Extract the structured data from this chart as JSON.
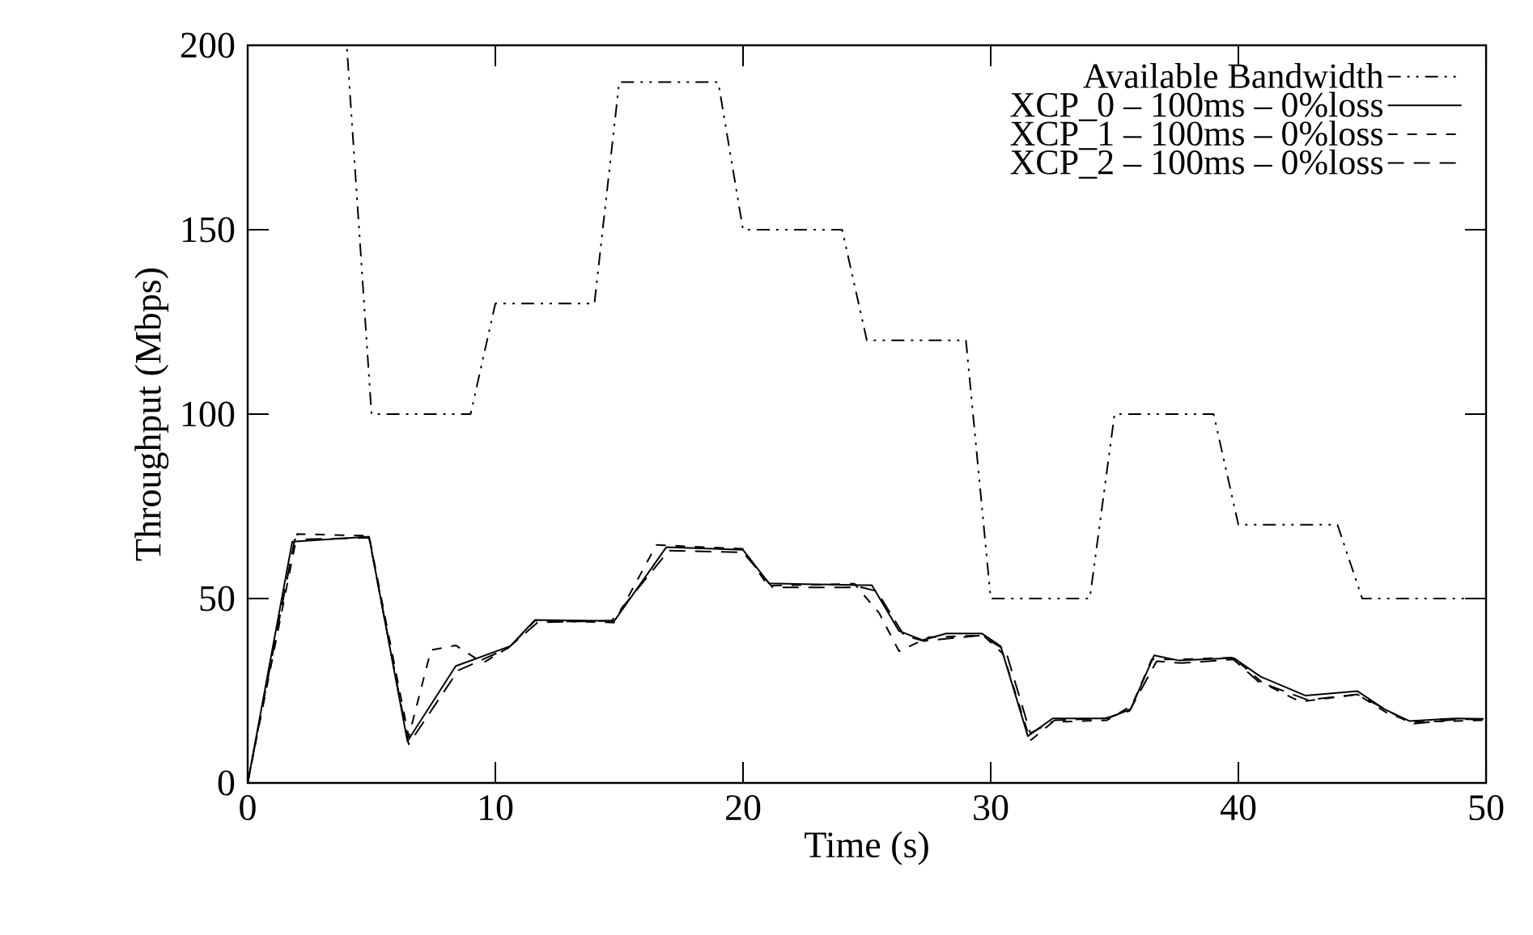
{
  "chart_data": {
    "type": "line",
    "xlabel": "Time (s)",
    "ylabel": "Throughput (Mbps)",
    "xlim": [
      0,
      50
    ],
    "ylim": [
      0,
      200
    ],
    "xticks": [
      0,
      10,
      20,
      30,
      40,
      50
    ],
    "yticks": [
      0,
      50,
      100,
      150,
      200
    ],
    "grid": false,
    "legend": "top right",
    "marker": "none",
    "series": [
      {
        "name": "Available Bandwidth",
        "color": "#000000",
        "line_style": "dashdotdot",
        "x": [
          0,
          4,
          5,
          9,
          10,
          14,
          15,
          19,
          20,
          24,
          25,
          29,
          30,
          34,
          35,
          39,
          40,
          44,
          45,
          50
        ],
        "values": [
          200,
          200,
          100,
          100,
          130,
          130,
          190,
          190,
          150,
          150,
          120,
          120,
          50,
          50,
          100,
          100,
          70,
          70,
          50,
          50
        ]
      },
      {
        "name": "XCP_0 – 100ms – 0%loss",
        "color": "#000000",
        "line_style": "solid",
        "x": [
          0,
          1.8,
          4.9,
          6.45,
          8.4,
          10.6,
          11.6,
          14.8,
          16.9,
          20,
          21.05,
          24.75,
          25.2,
          26.3,
          27.25,
          28.2,
          29.65,
          30.4,
          31.5,
          32.5,
          34.7,
          35.65,
          36.6,
          37.6,
          39.8,
          40.9,
          42.7,
          44.8,
          45.9,
          46.9,
          48.8,
          49.9
        ],
        "values": [
          0,
          65.4,
          66.8,
          11.3,
          31.7,
          37.1,
          44.2,
          43.9,
          63.9,
          63.2,
          54.1,
          53.6,
          53.6,
          41.2,
          38.7,
          40.5,
          40.5,
          37.1,
          12.7,
          17.5,
          17.5,
          20,
          34.6,
          33.2,
          33.9,
          28.8,
          23.7,
          24.9,
          20,
          16.8,
          17.5,
          17.4
        ]
      },
      {
        "name": "XCP_1 – 100ms – 0%loss",
        "color": "#000000",
        "line_style": "dashed",
        "x": [
          0,
          2,
          4.9,
          6.5,
          7.4,
          8.4,
          9.5,
          10.6,
          11.6,
          14.8,
          16.5,
          20,
          21,
          24.5,
          25.5,
          26.3,
          27.5,
          29.7,
          30.5,
          31.6,
          32.5,
          34.7,
          35.7,
          36.5,
          37.6,
          39.8,
          41,
          42.5,
          44.8,
          46,
          47,
          49.9
        ],
        "values": [
          0,
          67.5,
          67,
          12.5,
          36,
          37.3,
          32.5,
          37,
          44,
          43.5,
          64.5,
          63.5,
          53.5,
          54,
          46,
          35.7,
          39.5,
          40,
          35,
          11.5,
          16.5,
          17,
          21,
          33.5,
          33.5,
          34,
          27,
          22,
          24,
          19,
          16.5,
          17
        ]
      },
      {
        "name": "XCP_2 – 100ms – 0%loss",
        "color": "#000000",
        "line_style": "longdashed",
        "x": [
          0,
          1.9,
          4.9,
          6.5,
          8.5,
          10.5,
          11.7,
          14.7,
          17,
          20,
          21.2,
          24.8,
          25.4,
          26.5,
          27.3,
          29.6,
          30.6,
          31.6,
          32.6,
          34.6,
          35.6,
          36.7,
          37.7,
          39.8,
          40.8,
          42.8,
          44.8,
          45.8,
          47,
          48.9,
          49.9
        ],
        "values": [
          0,
          66,
          66.5,
          10.5,
          30.5,
          36.5,
          43.5,
          44,
          63,
          62.5,
          53,
          53,
          52,
          40,
          38.5,
          40,
          36,
          13.5,
          17,
          17.5,
          19.5,
          33,
          32.5,
          33.5,
          27.5,
          22.5,
          24,
          20.5,
          16,
          17.3,
          17.2
        ]
      }
    ]
  }
}
